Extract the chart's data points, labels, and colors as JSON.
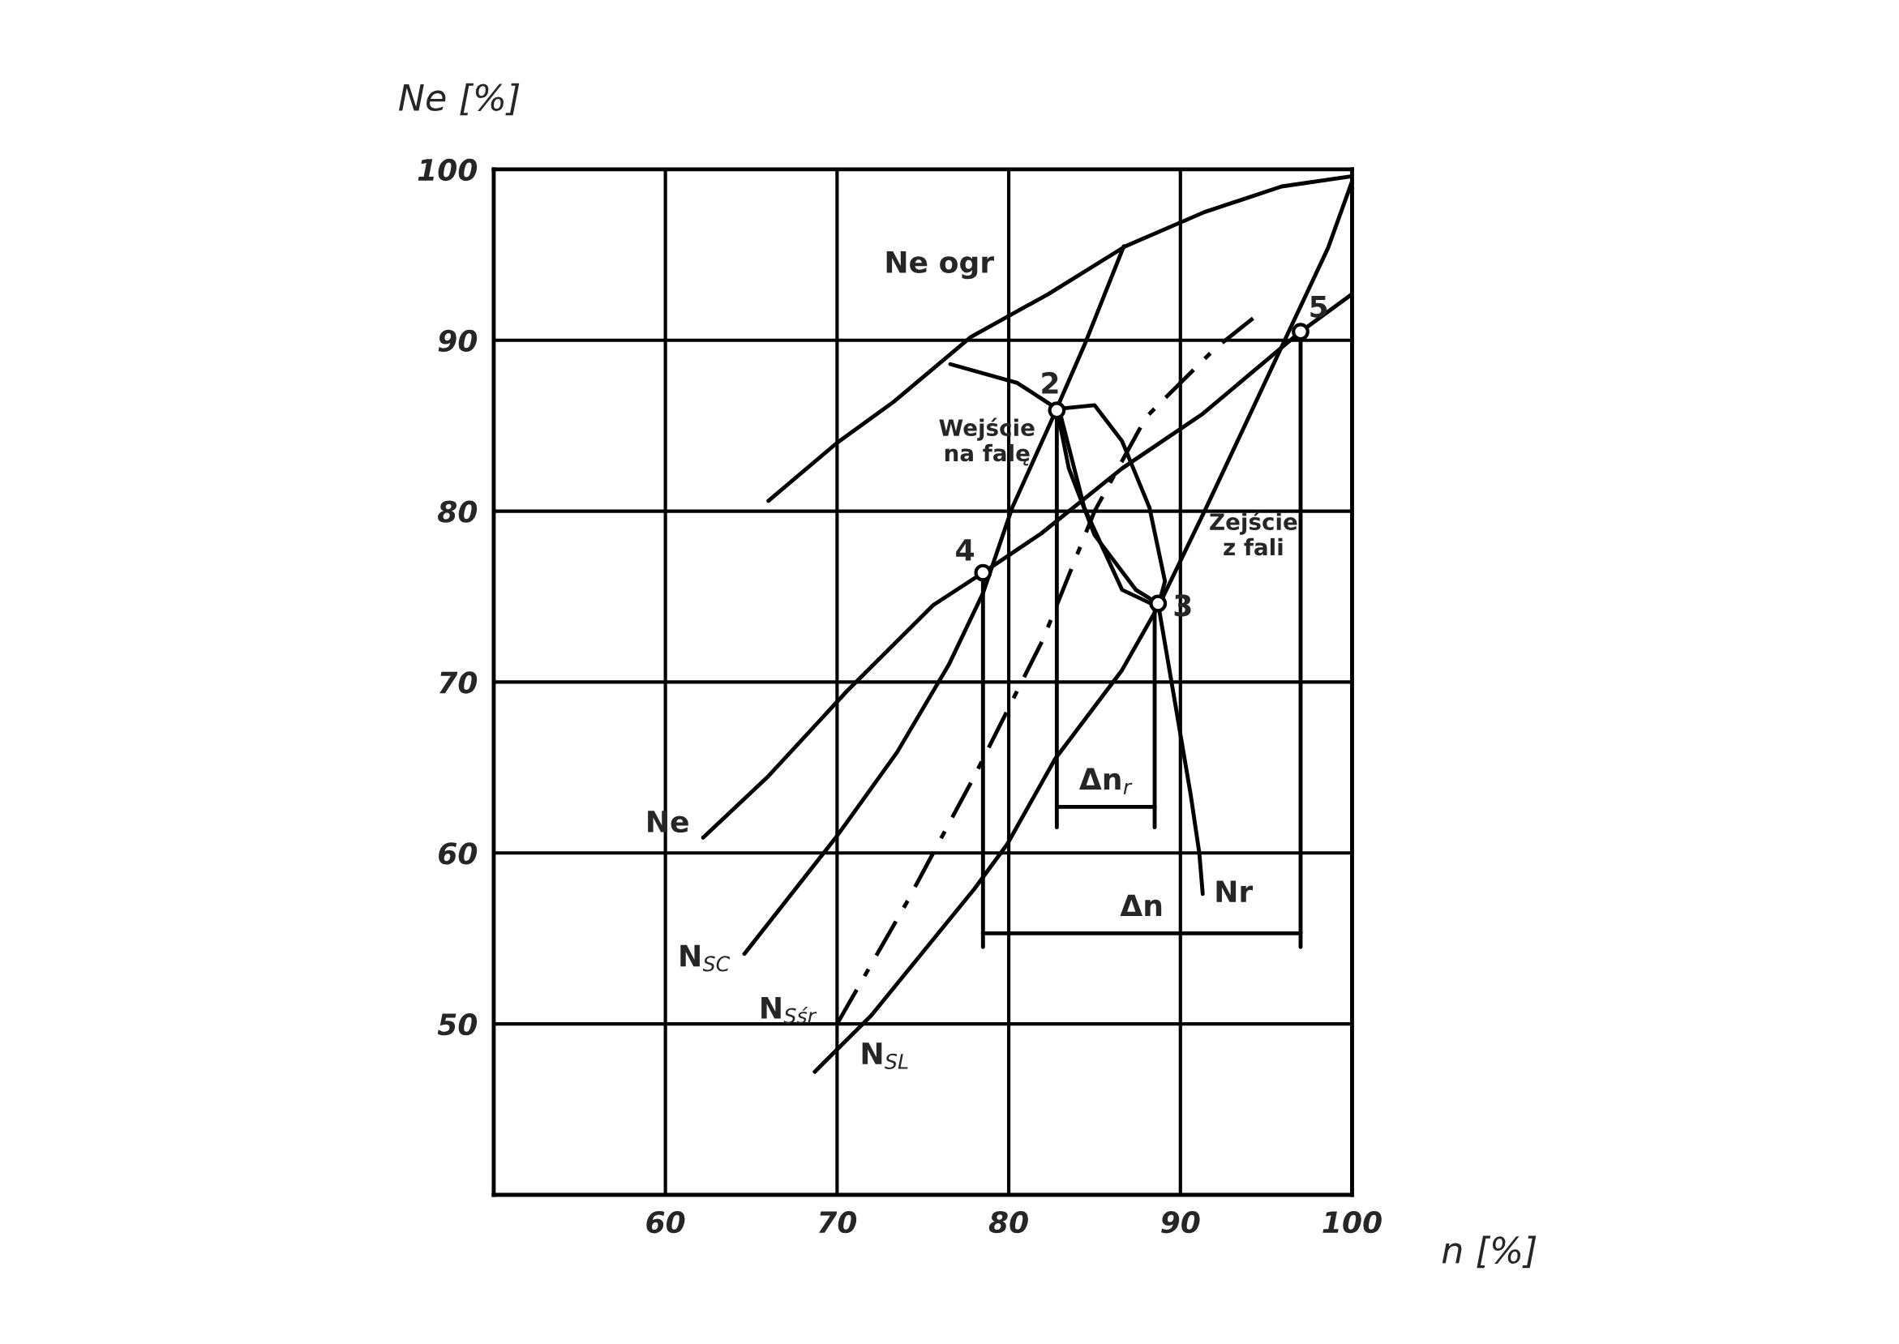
{
  "chart_data": {
    "type": "line",
    "xlabel": "n [%]",
    "ylabel": "Ne [%]",
    "xlim": [
      50,
      100
    ],
    "ylim": [
      40,
      100
    ],
    "xticks": [
      60,
      70,
      80,
      90,
      100
    ],
    "yticks": [
      50,
      60,
      70,
      80,
      90,
      100
    ],
    "grid": true,
    "marker": "none",
    "line_style": "solid",
    "series": [
      {
        "name": "Ne ogr",
        "color": "#000000",
        "x": [
          66,
          70,
          73.3,
          77.8,
          82.3,
          86.8,
          91.4,
          95.9,
          100
        ],
        "values": [
          80.6,
          84,
          86.4,
          90.2,
          92.7,
          95.5,
          97.5,
          99,
          99.6
        ]
      },
      {
        "name": "Ne",
        "color": "#000000",
        "x": [
          62.2,
          66,
          70.6,
          75.6,
          78.5,
          81.9,
          86.6,
          91.3,
          97,
          100
        ],
        "values": [
          60.9,
          64.5,
          69.5,
          74.5,
          76.4,
          78.7,
          82.5,
          85.7,
          90.5,
          92.7
        ]
      },
      {
        "name": "N$_{SC}$",
        "color": "#000000",
        "x": [
          64.6,
          70,
          73.5,
          76.5,
          78.5,
          80.2,
          82.4,
          84.4,
          86.7
        ],
        "values": [
          54.1,
          61,
          65.9,
          71,
          75.2,
          80.2,
          85.1,
          89.7,
          95.5
        ]
      },
      {
        "name": "N$_{SL}$",
        "color": "#000000",
        "x": [
          68.7,
          72,
          78,
          79.9,
          82.7,
          86.6,
          88.8,
          91.5,
          93.7,
          96.4,
          98.6,
          100
        ],
        "values": [
          47.2,
          50.5,
          57.9,
          60.5,
          65.5,
          70.7,
          74.6,
          80.2,
          84.9,
          90.7,
          95.4,
          99.3
        ]
      },
      {
        "name": "N$_{Sśr}$",
        "color": "#000000",
        "line_style": "dashed",
        "x": [
          70,
          74,
          78,
          82,
          85,
          88,
          92,
          94.5
        ],
        "values": [
          50,
          57,
          64.5,
          72.5,
          80,
          85.5,
          89.5,
          91.5
        ]
      },
      {
        "name": "Nr",
        "color": "#000000",
        "x": [
          76.6,
          80.5,
          82.8,
          83.5,
          85,
          87.4,
          88.7,
          89.6,
          90.6,
          91.1,
          91.3
        ],
        "values": [
          88.6,
          87.5,
          86,
          82.5,
          78.6,
          75.4,
          74.6,
          69.3,
          63.4,
          60,
          57.6
        ]
      },
      {
        "color": "#000000",
        "x": [
          83,
          85,
          86.6,
          88.2,
          89.1,
          88.7,
          86.6,
          84.4,
          83
        ],
        "values": [
          86,
          86.2,
          84.1,
          80.2,
          75.9,
          74.4,
          75.4,
          80.2,
          85.7
        ]
      },
      {
        "color": "#000000",
        "x": [
          78.5,
          78.5
        ],
        "values": [
          76.4,
          54.5
        ]
      },
      {
        "color": "#000000",
        "x": [
          97,
          97
        ],
        "values": [
          90.5,
          54.5
        ]
      },
      {
        "color": "#000000",
        "x": [
          82.8,
          82.8
        ],
        "values": [
          85.9,
          61.5
        ]
      },
      {
        "color": "#000000",
        "x": [
          88.5,
          88.5
        ],
        "values": [
          74.6,
          61.5
        ]
      },
      {
        "name": "Δn",
        "color": "#000000",
        "x": [
          78.5,
          97
        ],
        "values": [
          55.3,
          55.3
        ]
      },
      {
        "name": "Δn$_{r}$",
        "color": "#000000",
        "x": [
          82.8,
          88.5
        ],
        "values": [
          62.7,
          62.7
        ]
      },
      {
        "type": "scatter",
        "color": "#000000",
        "marker": "circle",
        "x": [
          82.8,
          88.7,
          78.5,
          97
        ],
        "values": [
          85.9,
          74.6,
          76.4,
          90.5
        ]
      }
    ],
    "annotations": [
      {
        "text": "Wejście\nna falę",
        "x": 82.8,
        "y": 85.9
      },
      {
        "text": "Zejście\nz fali",
        "x": 91.5,
        "y": 80.2
      },
      {
        "text": "2",
        "x": 82.8,
        "y": 85.9
      },
      {
        "text": "3",
        "x": 88.7,
        "y": 74.6
      },
      {
        "text": "4",
        "x": 78.5,
        "y": 76.4
      },
      {
        "text": "5",
        "x": 97,
        "y": 90.5
      }
    ]
  }
}
